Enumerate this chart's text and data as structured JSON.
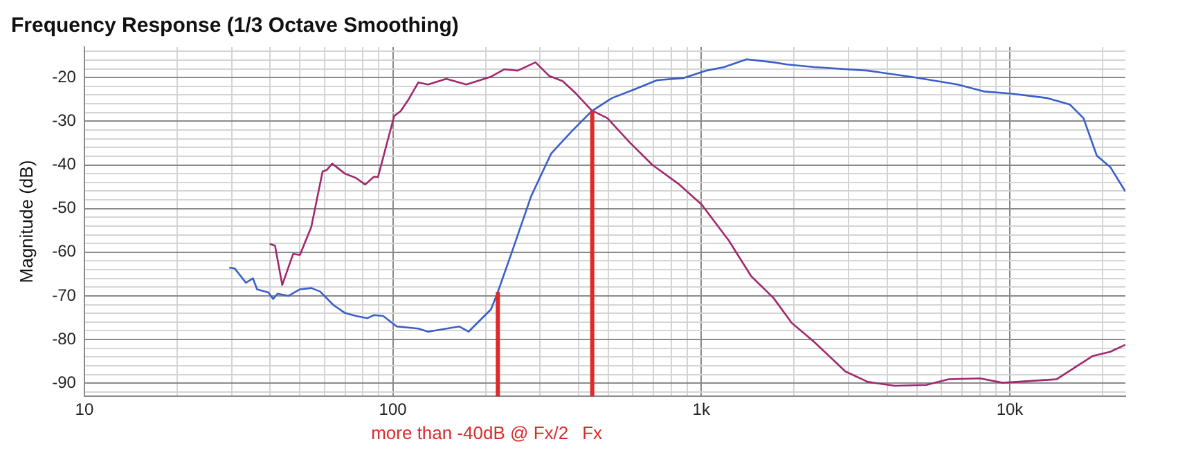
{
  "chart_data": {
    "type": "line",
    "title": "Frequency Response (1/3 Octave Smoothing)",
    "ylabel": "Magnitude (dB)",
    "log": "x",
    "grid": true,
    "legend": false,
    "marker": "none",
    "line_style": "solid",
    "xlim": [
      10,
      23700
    ],
    "xticks": [
      {
        "value": 10,
        "label": "10"
      },
      {
        "value": 20,
        "label": null
      },
      {
        "value": 30,
        "label": null
      },
      {
        "value": 40,
        "label": null
      },
      {
        "value": 50,
        "label": null
      },
      {
        "value": 60,
        "label": null
      },
      {
        "value": 70,
        "label": null
      },
      {
        "value": 80,
        "label": null
      },
      {
        "value": 90,
        "label": null
      },
      {
        "value": 100,
        "label": "100"
      },
      {
        "value": 200,
        "label": null
      },
      {
        "value": 300,
        "label": null
      },
      {
        "value": 400,
        "label": null
      },
      {
        "value": 500,
        "label": null
      },
      {
        "value": 600,
        "label": null
      },
      {
        "value": 700,
        "label": null
      },
      {
        "value": 800,
        "label": null
      },
      {
        "value": 900,
        "label": null
      },
      {
        "value": 1000,
        "label": "1k"
      },
      {
        "value": 2000,
        "label": null
      },
      {
        "value": 3000,
        "label": null
      },
      {
        "value": 4000,
        "label": null
      },
      {
        "value": 5000,
        "label": null
      },
      {
        "value": 6000,
        "label": null
      },
      {
        "value": 7000,
        "label": null
      },
      {
        "value": 8000,
        "label": null
      },
      {
        "value": 9000,
        "label": null
      },
      {
        "value": 10000,
        "label": "10k"
      },
      {
        "value": 20000,
        "label": null
      }
    ],
    "ylim": [
      -93,
      -13
    ],
    "yticks": [
      {
        "value": -14,
        "label": null
      },
      {
        "value": -16,
        "label": null
      },
      {
        "value": -18,
        "label": null
      },
      -20,
      {
        "value": -22,
        "label": null
      },
      {
        "value": -24,
        "label": null
      },
      {
        "value": -26,
        "label": null
      },
      {
        "value": -28,
        "label": null
      },
      -30,
      {
        "value": -32,
        "label": null
      },
      {
        "value": -34,
        "label": null
      },
      {
        "value": -36,
        "label": null
      },
      {
        "value": -38,
        "label": null
      },
      -40,
      {
        "value": -42,
        "label": null
      },
      {
        "value": -44,
        "label": null
      },
      {
        "value": -46,
        "label": null
      },
      {
        "value": -48,
        "label": null
      },
      -50,
      {
        "value": -52,
        "label": null
      },
      {
        "value": -54,
        "label": null
      },
      {
        "value": -56,
        "label": null
      },
      {
        "value": -58,
        "label": null
      },
      -60,
      {
        "value": -62,
        "label": null
      },
      {
        "value": -64,
        "label": null
      },
      {
        "value": -66,
        "label": null
      },
      {
        "value": -68,
        "label": null
      },
      -70,
      {
        "value": -72,
        "label": null
      },
      {
        "value": -74,
        "label": null
      },
      {
        "value": -76,
        "label": null
      },
      {
        "value": -78,
        "label": null
      },
      -80,
      {
        "value": -82,
        "label": null
      },
      {
        "value": -84,
        "label": null
      },
      {
        "value": -86,
        "label": null
      },
      {
        "value": -88,
        "label": null
      },
      -90,
      {
        "value": -92,
        "label": null
      }
    ],
    "series": [
      {
        "color": "#3a5fc8",
        "x": [
          29.5,
          30.7,
          33.4,
          35.2,
          36.3,
          39.5,
          40.9,
          42.3,
          45.9,
          50,
          54.4,
          58.1,
          64.2,
          69.9,
          76,
          82.7,
          86.9,
          93,
          103,
          121,
          130,
          164,
          176,
          208,
          218,
          245,
          281,
          326,
          380,
          441,
          513,
          607,
          718,
          877,
          1038,
          1186,
          1402,
          1715,
          1897,
          2318,
          3466,
          4850,
          6780,
          8290,
          10140,
          13250,
          15670,
          17330,
          19150,
          21180,
          23700
        ],
        "values": [
          -63.5,
          -63.7,
          -67,
          -66,
          -68.5,
          -69.2,
          -70.7,
          -69.5,
          -70,
          -68.5,
          -68.2,
          -69,
          -72.1,
          -73.9,
          -74.6,
          -75.1,
          -74.4,
          -74.6,
          -77,
          -77.5,
          -78.2,
          -77,
          -78.2,
          -73.1,
          -69.5,
          -59.3,
          -47.1,
          -37.4,
          -32.3,
          -27.7,
          -24.7,
          -22.7,
          -20.6,
          -20.1,
          -18.4,
          -17.6,
          -15.8,
          -16.5,
          -17,
          -17.6,
          -18.4,
          -19.9,
          -21.6,
          -23.2,
          -23.7,
          -24.7,
          -26.2,
          -29.3,
          -37.9,
          -40.5,
          -46.1
        ]
      },
      {
        "color": "#a0286e",
        "x": [
          39.9,
          41.5,
          43.8,
          47.5,
          50,
          54.4,
          59.2,
          61,
          63.6,
          69.9,
          76,
          81.3,
          86.9,
          89.5,
          101,
          106,
          112,
          121,
          130,
          149,
          173,
          208,
          230,
          254,
          290,
          321,
          355,
          393,
          441,
          496,
          587,
          694,
          849,
          1003,
          1227,
          1451,
          1715,
          1963,
          2318,
          2931,
          3466,
          4245,
          5360,
          6340,
          8010,
          9480,
          14170,
          18530,
          21180,
          23700
        ],
        "values": [
          -58.1,
          -58.5,
          -67.5,
          -60.4,
          -60.6,
          -54.2,
          -41.5,
          -41.2,
          -39.7,
          -42,
          -43,
          -44.5,
          -42.7,
          -42.8,
          -28.8,
          -27.7,
          -25.2,
          -21.1,
          -21.6,
          -20.3,
          -21.6,
          -19.8,
          -18.1,
          -18.4,
          -16.5,
          -19.6,
          -20.8,
          -23.7,
          -27.5,
          -29.3,
          -34.9,
          -40,
          -44.5,
          -49.1,
          -57.3,
          -65.5,
          -70.5,
          -76.2,
          -80.5,
          -87.3,
          -89.7,
          -90.6,
          -90.4,
          -89.1,
          -88.9,
          -89.9,
          -89.1,
          -83.8,
          -82.8,
          -81.2
        ]
      }
    ],
    "ref_lines": [
      {
        "axis": "x",
        "value": 219,
        "label": "more than -40dB @ Fx/2",
        "color": "#dd2a2a"
      },
      {
        "axis": "x",
        "value": 443,
        "label": "Fx",
        "color": "#dd2a2a"
      }
    ]
  }
}
